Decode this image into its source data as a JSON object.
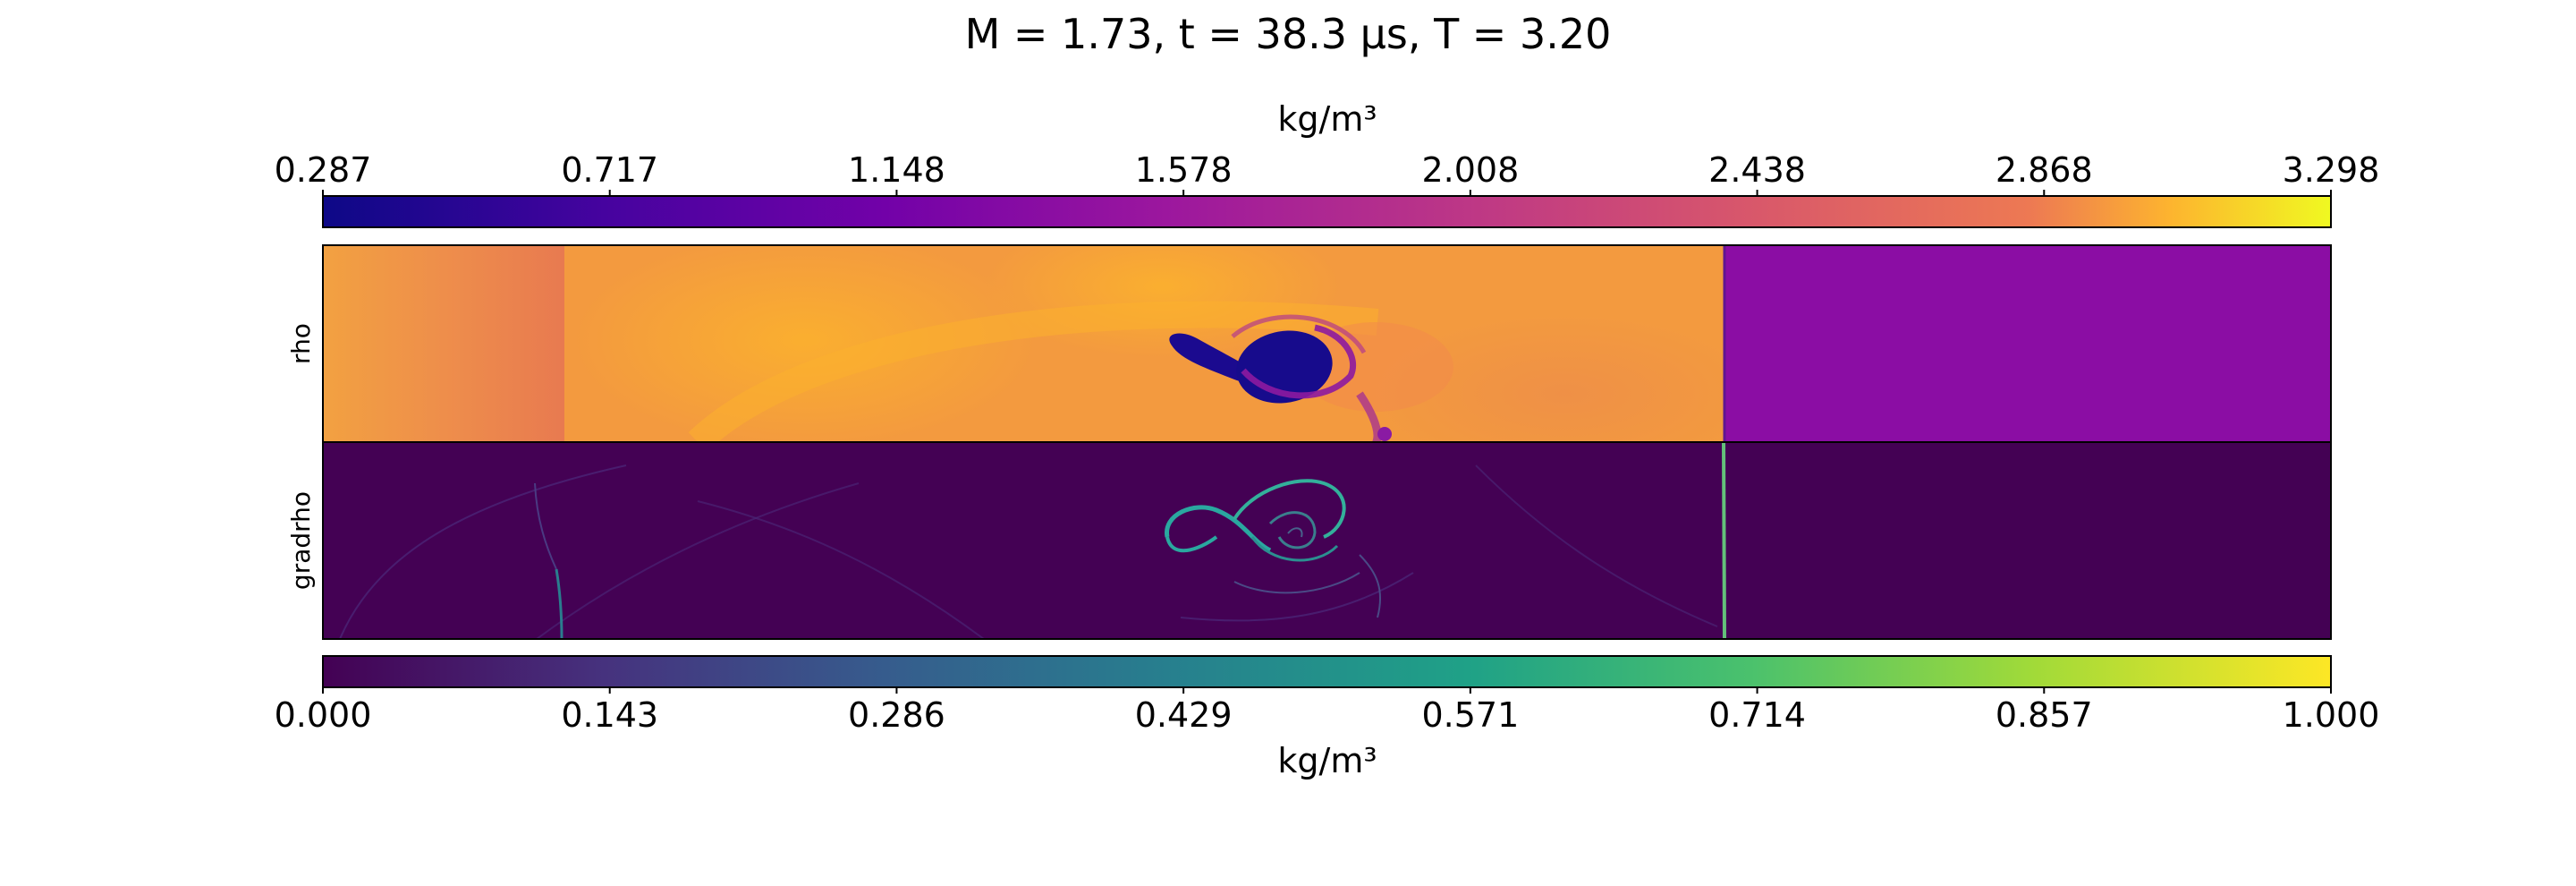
{
  "figure": {
    "title": "M = 1.73, t = 38.3 μs, T = 3.20"
  },
  "colorbars": {
    "top": {
      "label": "kg/m³",
      "colormap": "plasma",
      "ticks": [
        "0.287",
        "0.717",
        "1.148",
        "1.578",
        "2.008",
        "2.438",
        "2.868",
        "3.298"
      ]
    },
    "bottom": {
      "label": "kg/m³",
      "colormap": "viridis",
      "ticks": [
        "0.000",
        "0.143",
        "0.286",
        "0.429",
        "0.571",
        "0.714",
        "0.857",
        "1.000"
      ]
    }
  },
  "panels": {
    "rho": {
      "ylabel": "rho"
    },
    "gradrho": {
      "ylabel": "gradrho"
    }
  },
  "chart_data": [
    {
      "type": "heatmap",
      "title": "M = 1.73, t = 38.3 μs, T = 3.20",
      "ylabel": "rho",
      "colorbar_label": "kg/m³",
      "colormap": "plasma",
      "value_range": [
        0.287,
        3.298
      ],
      "colorbar_ticks": [
        0.287,
        0.717,
        1.148,
        1.578,
        2.008,
        2.438,
        2.868,
        3.298
      ],
      "regions": [
        {
          "description": "pre-shock gas right of the shock",
          "value": 1.35
        },
        {
          "description": "post-shock gas left of the shock",
          "value": 2.6
        },
        {
          "description": "inlet region far left",
          "value": 2.3
        },
        {
          "description": "vortex core (light gas)",
          "value": 0.35
        }
      ]
    },
    {
      "type": "heatmap",
      "ylabel": "gradrho",
      "colorbar_label": "kg/m³",
      "colormap": "viridis",
      "value_range": [
        0.0,
        1.0
      ],
      "colorbar_ticks": [
        0.0,
        0.143,
        0.286,
        0.429,
        0.571,
        0.714,
        0.857,
        1.0
      ],
      "regions": [
        {
          "description": "background",
          "value": 0.0
        },
        {
          "description": "shock front",
          "value": 0.6
        },
        {
          "description": "vortex interface",
          "value": 0.5
        }
      ]
    }
  ]
}
